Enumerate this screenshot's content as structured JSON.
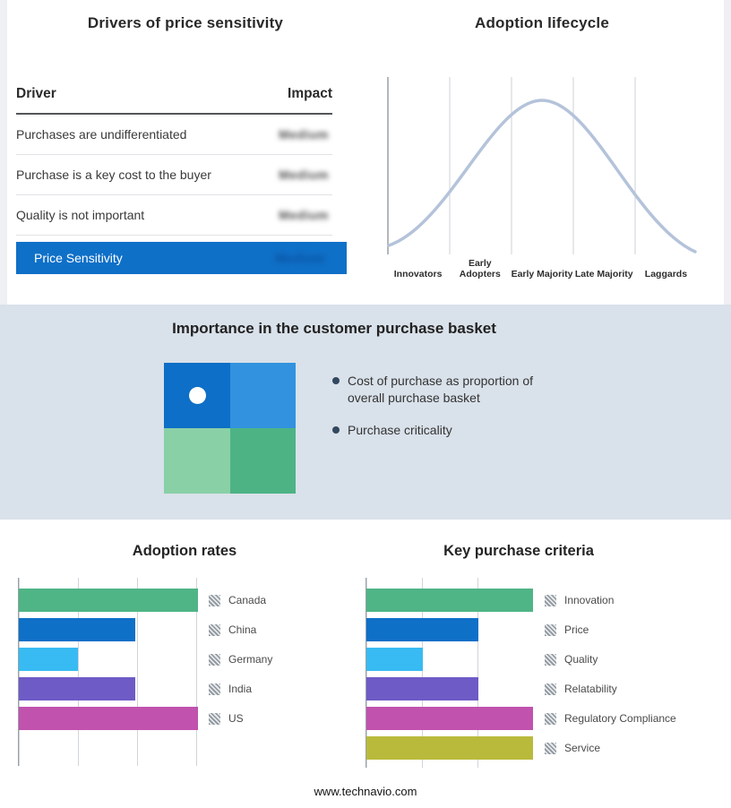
{
  "page": {
    "footer_url": "www.technavio.com",
    "mid_band_color": "#d9e1ea"
  },
  "price_drivers": {
    "title": "Drivers of price sensitivity",
    "columns": {
      "driver": "Driver",
      "impact": "Impact"
    },
    "rows": [
      {
        "driver": "Purchases are undifferentiated",
        "impact": "Medium",
        "impact_obscured": true
      },
      {
        "driver": "Purchase is a key cost to the buyer",
        "impact": "Medium",
        "impact_obscured": true
      },
      {
        "driver": "Quality is not important",
        "impact": "Medium",
        "impact_obscured": true
      }
    ],
    "summary": {
      "label": "Price Sensitivity",
      "impact": "Medium",
      "impact_obscured": true
    },
    "accent_color": "#0f70c8"
  },
  "purchase_basket": {
    "title": "Importance in the customer purchase basket",
    "bullets": [
      "Cost of purchase as proportion of overall purchase basket",
      "Purchase criticality"
    ],
    "matrix_colors": {
      "top_left": "#0d6fc7",
      "top_right": "#3292df",
      "bottom_left": "#8ad0a7",
      "bottom_right": "#4db384",
      "marker": "#ffffff"
    }
  },
  "chart_data": [
    {
      "id": "adoption_lifecycle",
      "type": "line",
      "shape": "bell-curve",
      "title": "Adoption lifecycle",
      "categories": [
        "Innovators",
        "Early Adopters",
        "Early Majority",
        "Late Majority",
        "Laggards"
      ],
      "relative_heights": [
        20,
        70,
        100,
        70,
        10
      ],
      "peak_stage": "Early Majority",
      "curve_color": "#b4c3da",
      "grid": true
    },
    {
      "id": "adoption_rates",
      "type": "bar",
      "orientation": "horizontal",
      "title": "Adoption rates",
      "categories": [
        "Canada",
        "China",
        "Germany",
        "India",
        "US"
      ],
      "values": [
        100,
        65,
        33,
        65,
        100
      ],
      "max": 100,
      "value_note": "relative lengths; no numeric axis labels shown",
      "colors": [
        "#4fb486",
        "#0f70c8",
        "#38bbf2",
        "#6e5bc6",
        "#c152ae"
      ],
      "legend_position": "right",
      "legend_marker": "hatched-square",
      "grid": true
    },
    {
      "id": "key_purchase_criteria",
      "type": "bar",
      "orientation": "horizontal",
      "title": "Key purchase criteria",
      "categories": [
        "Innovation",
        "Price",
        "Quality",
        "Relatability",
        "Regulatory Compliance",
        "Service"
      ],
      "values": [
        100,
        67,
        34,
        67,
        100,
        100
      ],
      "max": 100,
      "value_note": "relative lengths; no numeric axis labels shown",
      "colors": [
        "#4fb486",
        "#0f70c8",
        "#38bbf2",
        "#6e5bc6",
        "#c152ae",
        "#b9ba3c"
      ],
      "legend_position": "right",
      "legend_marker": "hatched-square",
      "grid": true
    }
  ]
}
